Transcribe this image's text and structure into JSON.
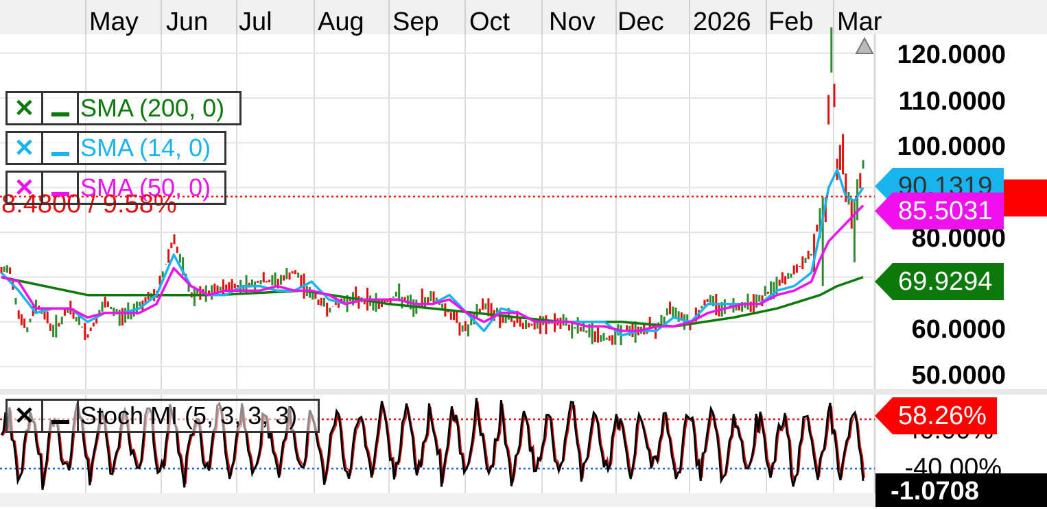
{
  "chart_data": {
    "type": "line",
    "months": [
      "May",
      "Jun",
      "Jul",
      "Aug",
      "Sep",
      "Oct",
      "Nov",
      "Dec",
      "2026",
      "Feb",
      "Mar"
    ],
    "price_axis": {
      "ticks": [
        "120.0000",
        "110.0000",
        "100.0000",
        "80.0000",
        "60.0000",
        "50.0000"
      ],
      "ylim": [
        45,
        123
      ]
    },
    "stoch_axis": {
      "ticks": [
        "40.00%",
        "-40.00%"
      ],
      "ylim": [
        -80,
        80
      ]
    },
    "series": [
      {
        "name": "SMA (200, 0)",
        "color": "#0b7a0b",
        "x": [
          0,
          0.1,
          0.25,
          0.35,
          0.45,
          0.55,
          0.65,
          0.72,
          0.78,
          0.85,
          0.9,
          0.95,
          0.97,
          1.0
        ],
        "y": [
          70,
          66,
          66,
          67,
          64,
          62,
          60,
          60,
          59,
          61,
          63,
          66,
          68,
          70
        ]
      },
      {
        "name": "SMA (14, 0)",
        "color": "#19b4ee",
        "x": [
          0,
          0.02,
          0.04,
          0.06,
          0.08,
          0.1,
          0.12,
          0.14,
          0.16,
          0.18,
          0.2,
          0.22,
          0.24,
          0.26,
          0.28,
          0.3,
          0.32,
          0.34,
          0.36,
          0.38,
          0.4,
          0.42,
          0.44,
          0.46,
          0.48,
          0.5,
          0.52,
          0.54,
          0.56,
          0.58,
          0.6,
          0.62,
          0.64,
          0.66,
          0.68,
          0.7,
          0.72,
          0.74,
          0.76,
          0.78,
          0.8,
          0.82,
          0.84,
          0.86,
          0.88,
          0.9,
          0.92,
          0.94,
          0.95,
          0.96,
          0.97,
          0.98,
          0.99,
          1.0
        ],
        "y": [
          71,
          67,
          62,
          63,
          63,
          60,
          62,
          62,
          63,
          66,
          75,
          68,
          66,
          66,
          68,
          68,
          67,
          67,
          69,
          65,
          64,
          65,
          65,
          65,
          64,
          64,
          66,
          62,
          58,
          63,
          62,
          60,
          60,
          60,
          60,
          60,
          57,
          58,
          58,
          61,
          60,
          64,
          64,
          64,
          64,
          67,
          68,
          71,
          80,
          90,
          94,
          88,
          87,
          90
        ]
      },
      {
        "name": "SMA (50, 0)",
        "color": "#ee11ee",
        "x": [
          0,
          0.02,
          0.04,
          0.06,
          0.08,
          0.1,
          0.12,
          0.14,
          0.16,
          0.18,
          0.2,
          0.22,
          0.24,
          0.26,
          0.28,
          0.3,
          0.32,
          0.34,
          0.36,
          0.38,
          0.4,
          0.42,
          0.44,
          0.46,
          0.48,
          0.5,
          0.52,
          0.54,
          0.56,
          0.58,
          0.6,
          0.62,
          0.64,
          0.66,
          0.68,
          0.7,
          0.72,
          0.74,
          0.76,
          0.78,
          0.8,
          0.82,
          0.84,
          0.86,
          0.88,
          0.9,
          0.92,
          0.94,
          0.95,
          0.96,
          0.97,
          0.98,
          0.99,
          1.0
        ],
        "y": [
          70,
          69,
          63,
          63,
          63,
          61,
          62,
          62,
          62,
          64,
          72,
          68,
          66,
          67,
          67,
          67,
          68,
          67,
          67,
          66,
          64,
          65,
          65,
          65,
          64,
          64,
          65,
          62,
          60,
          62,
          62,
          60,
          60,
          60,
          59,
          59,
          58,
          58,
          59,
          59,
          60,
          62,
          63,
          64,
          64,
          66,
          67,
          69,
          74,
          78,
          80,
          82,
          84,
          86
        ]
      },
      {
        "name": "Price",
        "color": "#2e8b2e",
        "x": [
          0,
          0.01,
          0.02,
          0.03,
          0.04,
          0.05,
          0.06,
          0.08,
          0.1,
          0.12,
          0.14,
          0.16,
          0.18,
          0.2,
          0.21,
          0.22,
          0.24,
          0.26,
          0.28,
          0.3,
          0.32,
          0.34,
          0.36,
          0.38,
          0.4,
          0.42,
          0.44,
          0.46,
          0.48,
          0.5,
          0.52,
          0.54,
          0.56,
          0.58,
          0.6,
          0.62,
          0.64,
          0.66,
          0.68,
          0.7,
          0.72,
          0.74,
          0.76,
          0.78,
          0.8,
          0.82,
          0.84,
          0.86,
          0.88,
          0.9,
          0.92,
          0.94,
          0.95,
          0.955,
          0.96,
          0.965,
          0.97,
          0.975,
          0.98,
          0.985,
          0.99,
          1.0
        ],
        "y": [
          71,
          72,
          62,
          58,
          64,
          62,
          58,
          63,
          57,
          64,
          61,
          64,
          66,
          79,
          72,
          66,
          66,
          68,
          68,
          69,
          69,
          71,
          66,
          63,
          65,
          65,
          64,
          66,
          63,
          66,
          62,
          58,
          64,
          61,
          60,
          59,
          60,
          59,
          58,
          56,
          58,
          58,
          59,
          63,
          60,
          65,
          63,
          64,
          65,
          68,
          71,
          75,
          84,
          76,
          108,
          120,
          95,
          100,
          90,
          85,
          80,
          96
        ]
      }
    ],
    "stochastic": {
      "name": "Stoch MI (5, 3, 3, 3)",
      "overbought": 40,
      "oversold": -40,
      "last": "-1.0708"
    }
  },
  "legends": [
    {
      "label": "SMA (200, 0)",
      "color": "#0b7a0b",
      "close": "✕"
    },
    {
      "label": "SMA (14, 0)",
      "color": "#19b4ee",
      "close": "✕"
    },
    {
      "label": "SMA (50, 0)",
      "color": "#ee11ee",
      "close": "✕"
    },
    {
      "label": "Stoch MI (5, 3, 3, 3)",
      "color": "#000000",
      "close": "✕"
    }
  ],
  "price_label": "8.4800 / 9.58%",
  "badges": {
    "sma14": "90.1319",
    "sma50": "85.5031",
    "sma200": "69.9294",
    "stoch_pct": "58.26%",
    "stoch_val": "-1.0708"
  },
  "colors": {
    "up": "#2e8b2e",
    "down": "#e01010",
    "sma200": "#0b7a0b",
    "sma14": "#19b4ee",
    "sma50": "#ee11ee",
    "last_price": "#ff0000"
  }
}
